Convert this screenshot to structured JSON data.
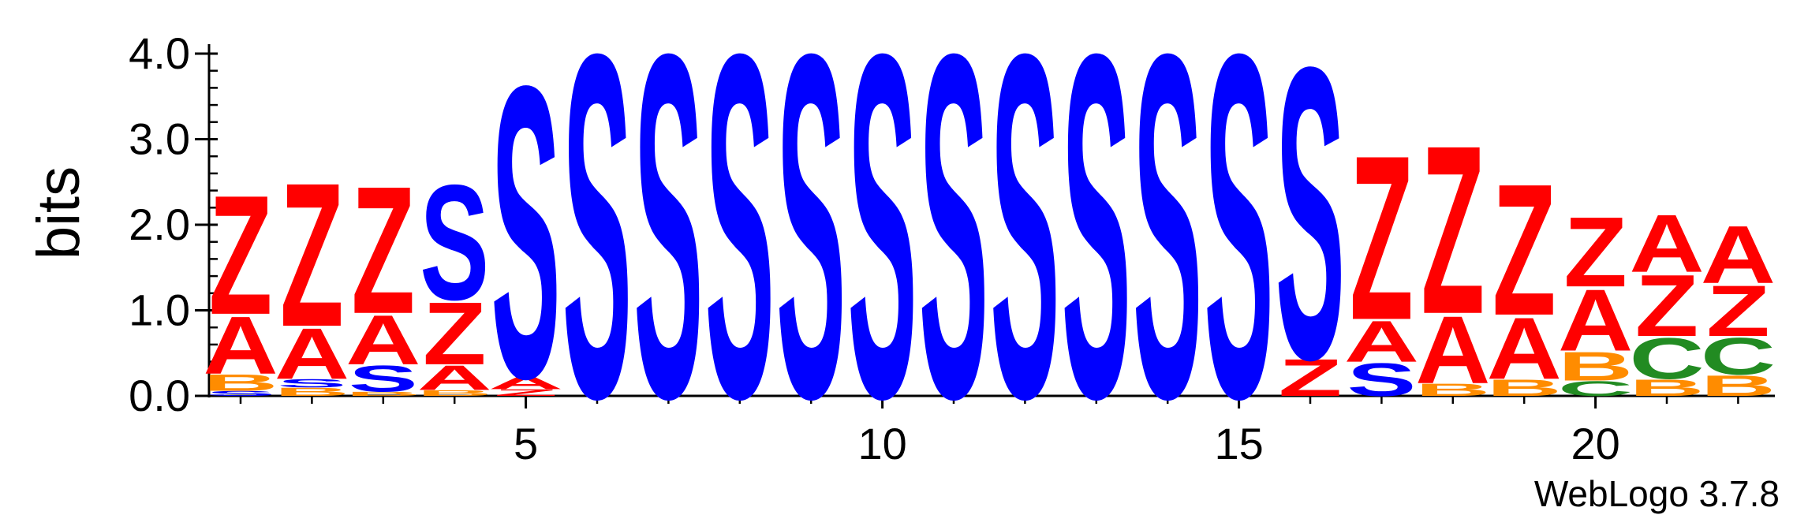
{
  "chart_data": {
    "type": "sequence-logo",
    "ylabel": "bits",
    "ylim": [
      0,
      4.0
    ],
    "yticks": [
      "0.0",
      "1.0",
      "2.0",
      "3.0",
      "4.0"
    ],
    "xticks": [
      "5",
      "10",
      "15",
      "20"
    ],
    "colors": {
      "S": "#0000ff",
      "Z": "#ff0000",
      "A": "#ff0000",
      "B": "#ff8c00",
      "C": "#228b22"
    },
    "positions": [
      {
        "x": 1,
        "stack": [
          {
            "l": "S",
            "h": 0.06
          },
          {
            "l": "B",
            "h": 0.2
          },
          {
            "l": "A",
            "h": 0.7
          },
          {
            "l": "Z",
            "h": 1.45
          }
        ]
      },
      {
        "x": 2,
        "stack": [
          {
            "l": "B",
            "h": 0.1
          },
          {
            "l": "S",
            "h": 0.1
          },
          {
            "l": "A",
            "h": 0.62
          },
          {
            "l": "Z",
            "h": 1.75
          }
        ]
      },
      {
        "x": 3,
        "stack": [
          {
            "l": "B",
            "h": 0.05
          },
          {
            "l": "S",
            "h": 0.32
          },
          {
            "l": "A",
            "h": 0.6
          },
          {
            "l": "Z",
            "h": 1.55
          }
        ]
      },
      {
        "x": 4,
        "stack": [
          {
            "l": "B",
            "h": 0.07
          },
          {
            "l": "A",
            "h": 0.3
          },
          {
            "l": "Z",
            "h": 0.76
          },
          {
            "l": "S",
            "h": 1.4
          }
        ]
      },
      {
        "x": 5,
        "stack": [
          {
            "l": "Z",
            "h": 0.08
          },
          {
            "l": "A",
            "h": 0.15
          },
          {
            "l": "S",
            "h": 3.55
          }
        ]
      },
      {
        "x": 6,
        "stack": [
          {
            "l": "S",
            "h": 4.18
          }
        ]
      },
      {
        "x": 7,
        "stack": [
          {
            "l": "S",
            "h": 4.18
          }
        ]
      },
      {
        "x": 8,
        "stack": [
          {
            "l": "S",
            "h": 4.18
          }
        ]
      },
      {
        "x": 9,
        "stack": [
          {
            "l": "S",
            "h": 4.18
          }
        ]
      },
      {
        "x": 10,
        "stack": [
          {
            "l": "S",
            "h": 4.18
          }
        ]
      },
      {
        "x": 11,
        "stack": [
          {
            "l": "S",
            "h": 4.18
          }
        ]
      },
      {
        "x": 12,
        "stack": [
          {
            "l": "S",
            "h": 4.18
          }
        ]
      },
      {
        "x": 13,
        "stack": [
          {
            "l": "S",
            "h": 4.18
          }
        ]
      },
      {
        "x": 14,
        "stack": [
          {
            "l": "S",
            "h": 4.18
          }
        ]
      },
      {
        "x": 15,
        "stack": [
          {
            "l": "S",
            "h": 4.18
          }
        ]
      },
      {
        "x": 16,
        "stack": [
          {
            "l": "Z",
            "h": 0.45
          },
          {
            "l": "S",
            "h": 3.55
          }
        ]
      },
      {
        "x": 17,
        "stack": [
          {
            "l": "S",
            "h": 0.4
          },
          {
            "l": "A",
            "h": 0.5
          },
          {
            "l": "Z",
            "h": 2.0
          }
        ]
      },
      {
        "x": 18,
        "stack": [
          {
            "l": "B",
            "h": 0.15
          },
          {
            "l": "A",
            "h": 0.82
          },
          {
            "l": "Z",
            "h": 2.05
          }
        ]
      },
      {
        "x": 19,
        "stack": [
          {
            "l": "B",
            "h": 0.2
          },
          {
            "l": "A",
            "h": 0.75
          },
          {
            "l": "Z",
            "h": 1.6
          }
        ]
      },
      {
        "x": 20,
        "stack": [
          {
            "l": "C",
            "h": 0.18
          },
          {
            "l": "B",
            "h": 0.35
          },
          {
            "l": "A",
            "h": 0.75
          },
          {
            "l": "Z",
            "h": 0.85
          }
        ]
      },
      {
        "x": 21,
        "stack": [
          {
            "l": "B",
            "h": 0.2
          },
          {
            "l": "C",
            "h": 0.5
          },
          {
            "l": "Z",
            "h": 0.75
          },
          {
            "l": "A",
            "h": 0.7
          }
        ]
      },
      {
        "x": 22,
        "stack": [
          {
            "l": "B",
            "h": 0.25
          },
          {
            "l": "C",
            "h": 0.45
          },
          {
            "l": "Z",
            "h": 0.62
          },
          {
            "l": "A",
            "h": 0.7
          }
        ]
      }
    ]
  },
  "footer": {
    "label": "WebLogo 3.7.8"
  }
}
